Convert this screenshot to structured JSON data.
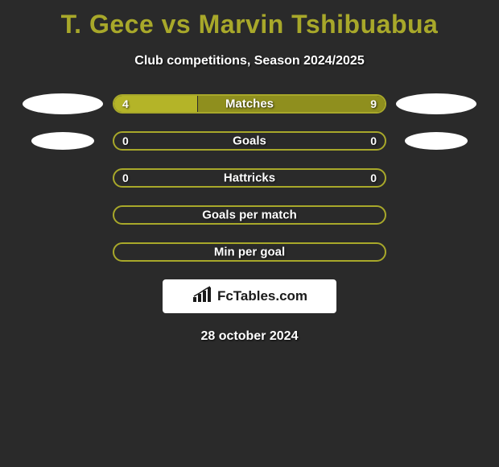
{
  "title": "T. Gece vs Marvin Tshibuabua",
  "subtitle": "Club competitions, Season 2024/2025",
  "date": "28 october 2024",
  "badge_text": "FcTables.com",
  "colors": {
    "accent": "#a8a82a",
    "bar_border": "#a8a82a",
    "bar_fill_neutral": "#8f8f1e",
    "bar_fill_highlight": "#b4b428",
    "background": "#2a2a2a"
  },
  "rows": [
    {
      "label": "Matches",
      "left_value": "4",
      "right_value": "9",
      "left_pct": 30.8,
      "right_pct": 69.2,
      "left_color": "#b4b428",
      "right_color": "#8f8f1e",
      "decor": "ellipse-large"
    },
    {
      "label": "Goals",
      "left_value": "0",
      "right_value": "0",
      "left_pct": 0,
      "right_pct": 0,
      "left_color": "#8f8f1e",
      "right_color": "#8f8f1e",
      "decor": "ellipse-small"
    },
    {
      "label": "Hattricks",
      "left_value": "0",
      "right_value": "0",
      "left_pct": 0,
      "right_pct": 0,
      "left_color": "#8f8f1e",
      "right_color": "#8f8f1e",
      "decor": "none"
    },
    {
      "label": "Goals per match",
      "left_value": "",
      "right_value": "",
      "left_pct": 0,
      "right_pct": 0,
      "left_color": "#8f8f1e",
      "right_color": "#8f8f1e",
      "decor": "none"
    },
    {
      "label": "Min per goal",
      "left_value": "",
      "right_value": "",
      "left_pct": 0,
      "right_pct": 0,
      "left_color": "#8f8f1e",
      "right_color": "#8f8f1e",
      "decor": "none"
    }
  ]
}
